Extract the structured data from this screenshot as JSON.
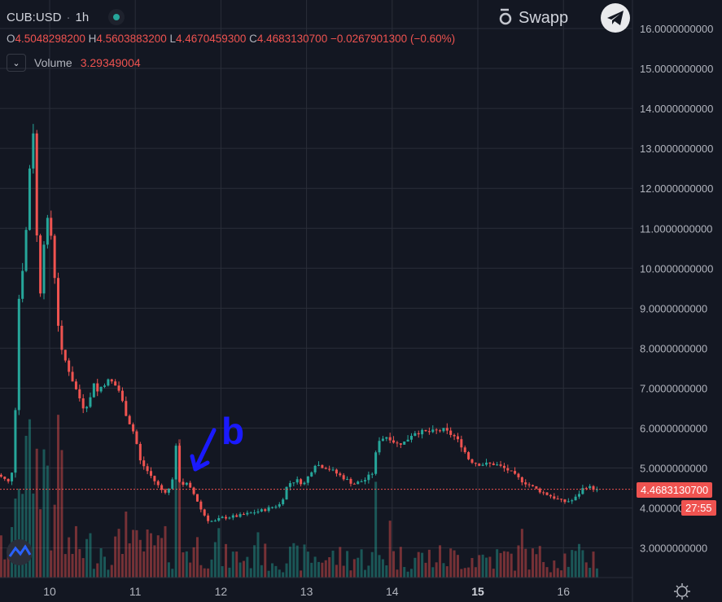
{
  "header": {
    "symbol": "CUB:USD",
    "separator": "·",
    "interval": "1h",
    "status_color": "#26a69a",
    "ohlc": {
      "o_key": "O",
      "o_val": "4.5048298200",
      "h_key": "H",
      "h_val": "4.5603883200",
      "l_key": "L",
      "l_val": "4.4670459300",
      "c_key": "C",
      "c_val": "4.4683130700",
      "change": "−0.0267901300 (−0.60%)"
    },
    "volume_label": "Volume",
    "volume_value": "3.29349004",
    "toggle_icon": "chevron-down-icon"
  },
  "watermark": {
    "brand": "Swapp",
    "brand_icon": "swapp-logo-icon",
    "share_icon": "telegram-icon"
  },
  "annotation": {
    "text": "b",
    "color": "#1a1aff",
    "arrow_icon": "arrow-down-left-icon"
  },
  "price_tag": {
    "value": "4.4683130700",
    "countdown": "27:55",
    "color": "#ef5350"
  },
  "footer": {
    "settings_icon": "gear-icon",
    "logo_icon": "tradingview-logo-icon"
  },
  "colors": {
    "up": "#26a69a",
    "down": "#ef5350",
    "grid": "#2a2e39",
    "background": "#131722",
    "text": "#b2b5be"
  },
  "chart_data": {
    "type": "candlestick",
    "ylim": [
      2.25,
      16.25
    ],
    "y_scale": "linear",
    "grid": true,
    "y_ticks": [
      {
        "value": 3,
        "label": "3.0000000000"
      },
      {
        "value": 4,
        "label": "4.0000000000"
      },
      {
        "value": 5,
        "label": "5.0000000000"
      },
      {
        "value": 6,
        "label": "6.0000000000"
      },
      {
        "value": 7,
        "label": "7.0000000000"
      },
      {
        "value": 8,
        "label": "8.0000000000"
      },
      {
        "value": 9,
        "label": "9.0000000000"
      },
      {
        "value": 10,
        "label": "10.0000000000"
      },
      {
        "value": 11,
        "label": "11.0000000000"
      },
      {
        "value": 12,
        "label": "12.0000000000"
      },
      {
        "value": 13,
        "label": "13.0000000000"
      },
      {
        "value": 14,
        "label": "14.0000000000"
      },
      {
        "value": 15,
        "label": "15.0000000000"
      },
      {
        "value": 16,
        "label": "16.0000000000"
      }
    ],
    "x_ticks": [
      {
        "day": 10,
        "label": "10",
        "bold": false
      },
      {
        "day": 11,
        "label": "11",
        "bold": false
      },
      {
        "day": 12,
        "label": "12",
        "bold": false
      },
      {
        "day": 13,
        "label": "13",
        "bold": false
      },
      {
        "day": 14,
        "label": "14",
        "bold": false
      },
      {
        "day": 15,
        "label": "15",
        "bold": true
      },
      {
        "day": 16,
        "label": "16",
        "bold": false
      }
    ],
    "last_price": 4.46831307,
    "keypoints": [
      [
        9.35,
        4.9
      ],
      [
        9.55,
        4.6
      ],
      [
        9.6,
        6.5
      ],
      [
        9.65,
        9.8
      ],
      [
        9.7,
        10.1
      ],
      [
        9.75,
        11.8
      ],
      [
        9.8,
        14.0
      ],
      [
        9.83,
        12.0
      ],
      [
        9.88,
        9.0
      ],
      [
        9.92,
        10.5
      ],
      [
        9.97,
        11.2
      ],
      [
        10.02,
        10.8
      ],
      [
        10.07,
        9.5
      ],
      [
        10.12,
        8.0
      ],
      [
        10.2,
        7.6
      ],
      [
        10.3,
        7.0
      ],
      [
        10.4,
        6.5
      ],
      [
        10.47,
        6.7
      ],
      [
        10.52,
        7.2
      ],
      [
        10.56,
        6.9
      ],
      [
        10.62,
        7.1
      ],
      [
        10.7,
        7.2
      ],
      [
        10.8,
        7.0
      ],
      [
        10.9,
        6.3
      ],
      [
        11.0,
        5.8
      ],
      [
        11.05,
        5.2
      ],
      [
        11.15,
        4.9
      ],
      [
        11.25,
        4.6
      ],
      [
        11.33,
        4.4
      ],
      [
        11.42,
        4.5
      ],
      [
        11.48,
        5.6
      ],
      [
        11.52,
        4.6
      ],
      [
        11.6,
        4.6
      ],
      [
        11.7,
        4.3
      ],
      [
        11.78,
        3.9
      ],
      [
        11.85,
        3.7
      ],
      [
        11.92,
        3.65
      ],
      [
        12.0,
        3.75
      ],
      [
        12.2,
        3.8
      ],
      [
        12.5,
        3.95
      ],
      [
        12.7,
        4.1
      ],
      [
        12.78,
        4.6
      ],
      [
        12.88,
        4.7
      ],
      [
        12.97,
        4.6
      ],
      [
        13.1,
        5.1
      ],
      [
        13.25,
        5.0
      ],
      [
        13.4,
        4.8
      ],
      [
        13.55,
        4.6
      ],
      [
        13.68,
        4.7
      ],
      [
        13.78,
        4.9
      ],
      [
        13.83,
        5.7
      ],
      [
        13.95,
        5.8
      ],
      [
        14.05,
        5.6
      ],
      [
        14.15,
        5.65
      ],
      [
        14.25,
        5.9
      ],
      [
        14.45,
        5.9
      ],
      [
        14.6,
        5.95
      ],
      [
        14.72,
        5.8
      ],
      [
        14.8,
        5.6
      ],
      [
        14.9,
        5.2
      ],
      [
        15.0,
        5.1
      ],
      [
        15.2,
        5.1
      ],
      [
        15.35,
        4.95
      ],
      [
        15.5,
        4.7
      ],
      [
        15.7,
        4.45
      ],
      [
        15.85,
        4.3
      ],
      [
        16.0,
        4.15
      ],
      [
        16.12,
        4.2
      ],
      [
        16.25,
        4.55
      ],
      [
        16.38,
        4.47
      ]
    ]
  }
}
